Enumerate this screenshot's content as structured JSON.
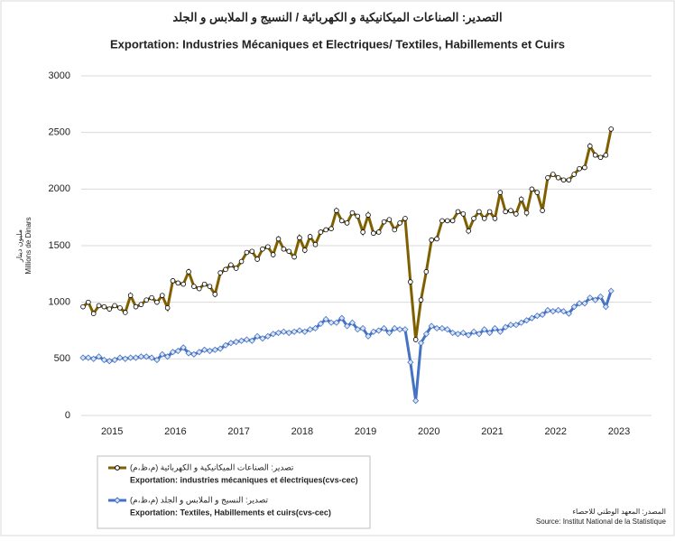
{
  "chart_data": {
    "type": "line",
    "title": "التصدير: الصناعات الميكانيكية و الكهربائية / النسيج و الملابس و الجلد",
    "subtitle": "Exportation:  Industries Mécaniques et Electriques/ Textiles, Habillements et Cuirs",
    "y_label": "مليون دينار",
    "y_label_fr": "Millions de Dinars",
    "categories": [
      null,
      null,
      null,
      null,
      null,
      null,
      "2015",
      null,
      null,
      null,
      null,
      null,
      null,
      null,
      null,
      null,
      null,
      null,
      "2016",
      null,
      null,
      null,
      null,
      null,
      null,
      null,
      null,
      null,
      null,
      null,
      "2017",
      null,
      null,
      null,
      null,
      null,
      null,
      null,
      null,
      null,
      null,
      null,
      "2018",
      null,
      null,
      null,
      null,
      null,
      null,
      null,
      null,
      null,
      null,
      null,
      "2019",
      null,
      null,
      null,
      null,
      null,
      null,
      null,
      null,
      null,
      null,
      null,
      "2020",
      null,
      null,
      null,
      null,
      null,
      null,
      null,
      null,
      null,
      null,
      null,
      "2021",
      null,
      null,
      null,
      null,
      null,
      null,
      null,
      null,
      null,
      null,
      null,
      "2022",
      null,
      null,
      null,
      null,
      null,
      null,
      null,
      null,
      null,
      null,
      null,
      "2023",
      null,
      null,
      null,
      null,
      null
    ],
    "series": [
      {
        "name": "تصدير: الصناعات الميكانيكية و الكهربائية (م،ظ،م)",
        "name_fr": "Exportation: industries mécaniques et électriques(cvs-cec)",
        "color": "#7f6000",
        "marker": "circle",
        "values": [
          960,
          1000,
          900,
          970,
          960,
          940,
          970,
          950,
          910,
          1060,
          960,
          980,
          1020,
          1040,
          1000,
          1060,
          950,
          1190,
          1170,
          1160,
          1270,
          1140,
          1120,
          1160,
          1140,
          1070,
          1260,
          1290,
          1330,
          1300,
          1360,
          1440,
          1450,
          1380,
          1470,
          1490,
          1420,
          1560,
          1470,
          1450,
          1400,
          1570,
          1460,
          1580,
          1510,
          1620,
          1640,
          1650,
          1810,
          1720,
          1700,
          1790,
          1760,
          1620,
          1770,
          1610,
          1620,
          1710,
          1730,
          1640,
          1700,
          1740,
          1180,
          670,
          1020,
          1270,
          1550,
          1560,
          1720,
          1720,
          1720,
          1800,
          1780,
          1630,
          1740,
          1800,
          1740,
          1800,
          1740,
          1970,
          1800,
          1810,
          1780,
          1910,
          1790,
          2000,
          1970,
          1810,
          2100,
          2130,
          2100,
          2080,
          2080,
          2130,
          2180,
          2190,
          2380,
          2300,
          2280,
          2300,
          2530,
          null,
          null,
          null,
          null,
          null,
          null,
          null
        ]
      },
      {
        "name": "تصدير: النسيج و الملابس و الجلد (م،ظ،م)",
        "name_fr": "Exportation: Textiles, Habillements et cuirs(cvs-cec)",
        "color": "#4472c4",
        "marker": "diamond",
        "values": [
          510,
          510,
          500,
          520,
          490,
          480,
          490,
          510,
          500,
          510,
          510,
          520,
          520,
          510,
          490,
          540,
          520,
          560,
          570,
          600,
          550,
          540,
          560,
          580,
          570,
          580,
          590,
          620,
          640,
          650,
          660,
          670,
          660,
          700,
          680,
          700,
          720,
          730,
          740,
          730,
          740,
          750,
          740,
          760,
          770,
          810,
          850,
          820,
          820,
          860,
          790,
          820,
          760,
          770,
          700,
          740,
          750,
          770,
          730,
          770,
          760,
          760,
          470,
          130,
          640,
          720,
          790,
          770,
          770,
          760,
          730,
          720,
          730,
          710,
          740,
          720,
          760,
          730,
          770,
          740,
          780,
          800,
          800,
          820,
          840,
          860,
          880,
          890,
          930,
          920,
          930,
          920,
          900,
          960,
          990,
          990,
          1040,
          1020,
          1050,
          960,
          1100,
          null,
          null,
          null,
          null,
          null,
          null,
          null
        ]
      }
    ],
    "ylim": [
      0,
      3000
    ],
    "yticks": [
      0,
      500,
      1000,
      1500,
      2000,
      2500,
      3000
    ],
    "grid": true,
    "source": "المصدر: المعهد الوطني للاحصاء",
    "source_fr": "Source: Institut National de la Statistique"
  }
}
